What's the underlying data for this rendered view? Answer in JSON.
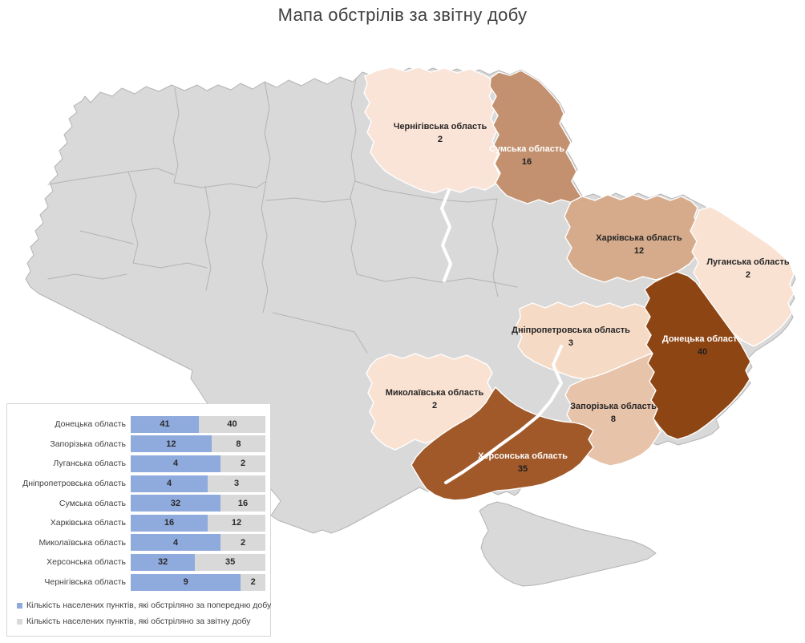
{
  "title": "Мапа обстрілів за звітну добу",
  "colors": {
    "map_default_fill": "#d9d9d9",
    "map_border": "#b3b3b3",
    "prev_day_bar": "#8faadc",
    "report_day_bar": "#d9d9d9",
    "value_text": "#1f1f1f"
  },
  "map": {
    "regions": [
      {
        "key": "chernihiv",
        "name": "Чернігівська область",
        "value": "2",
        "fill": "#fae3d7",
        "label_color": "#262626"
      },
      {
        "key": "sumy",
        "name": "Сумська область",
        "value": "16",
        "fill": "#c3916f",
        "label_color": "#ffffff"
      },
      {
        "key": "kharkiv",
        "name": "Харківська область",
        "value": "12",
        "fill": "#d6ab8b",
        "label_color": "#262626"
      },
      {
        "key": "luhansk",
        "name": "Луганська область",
        "value": "2",
        "fill": "#f9e2d2",
        "label_color": "#262626"
      },
      {
        "key": "donetsk",
        "name": "Донецька область",
        "value": "40",
        "fill": "#8e4514",
        "label_color": "#ffffff"
      },
      {
        "key": "dnipro",
        "name": "Дніпропетровська область",
        "value": "3",
        "fill": "#f5dac6",
        "label_color": "#262626"
      },
      {
        "key": "zaporizhzhia",
        "name": "Запорізька область",
        "value": "8",
        "fill": "#e7c3aa",
        "label_color": "#262626"
      },
      {
        "key": "mykolaiv",
        "name": "Миколаївська область",
        "value": "2",
        "fill": "#f9e2d2",
        "label_color": "#262626"
      },
      {
        "key": "kherson",
        "name": "Херсонська область",
        "value": "35",
        "fill": "#a1592a",
        "label_color": "#ffffff"
      }
    ]
  },
  "chart_data": {
    "type": "bar",
    "subtype": "horizontal-100%-stacked",
    "categories": [
      "Донецька область",
      "Запорізька область",
      "Луганська область",
      "Дніпропетровська область",
      "Сумська область",
      "Харківська область",
      "Миколаївська область",
      "Херсонська область",
      "Чернігівська область"
    ],
    "series": [
      {
        "name": "Кількість населених пунктів, які обстріляно за попередню добу",
        "color": "#8faadc",
        "values": [
          41,
          12,
          4,
          4,
          32,
          16,
          4,
          32,
          9
        ]
      },
      {
        "name": "Кількість населених пунктів, які обстріляно за звітну добу",
        "color": "#d9d9d9",
        "values": [
          40,
          8,
          2,
          3,
          16,
          12,
          2,
          35,
          2
        ]
      }
    ],
    "title": "",
    "xlabel": "",
    "ylabel": "",
    "grid": false,
    "legend_position": "bottom-left"
  }
}
